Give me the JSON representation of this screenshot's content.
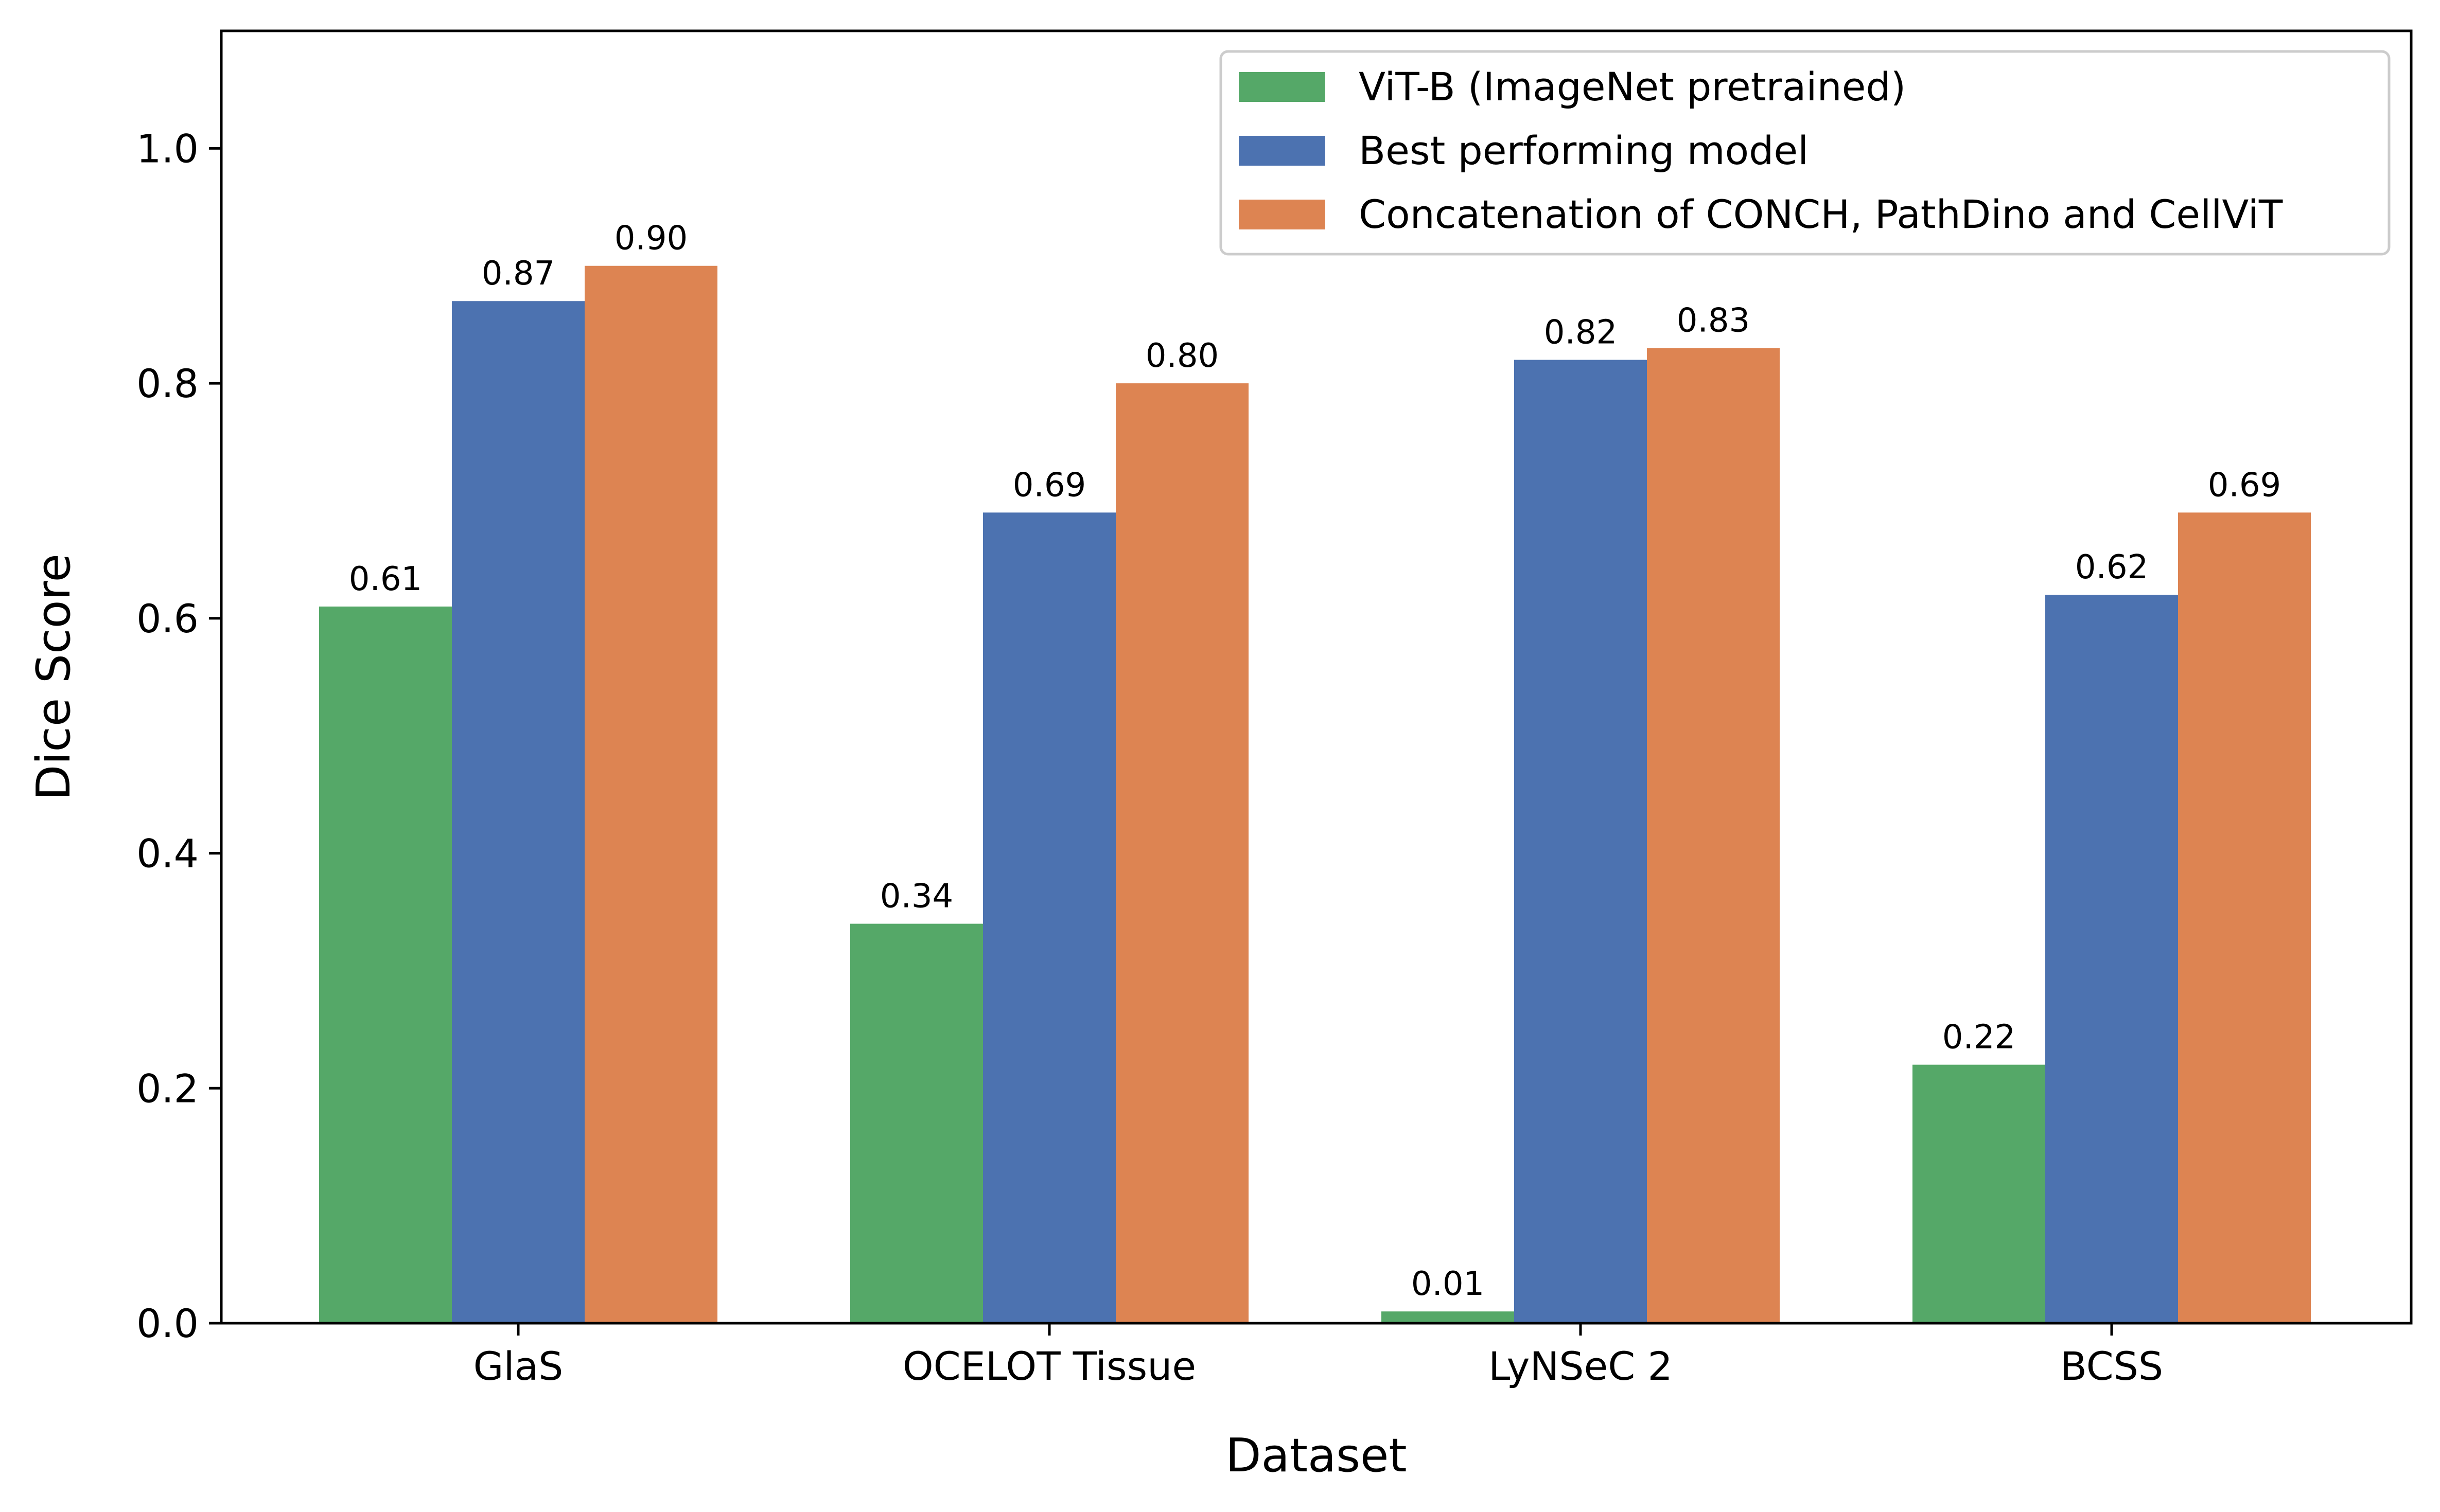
{
  "chart_data": {
    "type": "bar",
    "title": "",
    "xlabel": "Dataset",
    "ylabel": "Dice Score",
    "categories": [
      "GlaS",
      "OCELOT Tissue",
      "LyNSeC 2",
      "BCSS"
    ],
    "series": [
      {
        "name": "ViT-B (ImageNet pretrained)",
        "color": "#55a868",
        "values": [
          0.61,
          0.34,
          0.01,
          0.22
        ],
        "labels": [
          "0.61",
          "0.34",
          "0.01",
          "0.22"
        ]
      },
      {
        "name": "Best performing model",
        "color": "#4c72b0",
        "values": [
          0.87,
          0.69,
          0.82,
          0.62
        ],
        "labels": [
          "0.87",
          "0.69",
          "0.82",
          "0.62"
        ]
      },
      {
        "name": "Concatenation of CONCH, PathDino and CellViT",
        "color": "#dd8452",
        "values": [
          0.9,
          0.8,
          0.83,
          0.69
        ],
        "labels": [
          "0.90",
          "0.80",
          "0.83",
          "0.69"
        ]
      }
    ],
    "ylim": [
      0,
      1.1
    ],
    "yticks": [
      0.0,
      0.2,
      0.4,
      0.6,
      0.8,
      1.0
    ],
    "ytick_labels": [
      "0.0",
      "0.2",
      "0.4",
      "0.6",
      "0.8",
      "1.0"
    ],
    "grid": false,
    "legend_position": "top-right"
  }
}
